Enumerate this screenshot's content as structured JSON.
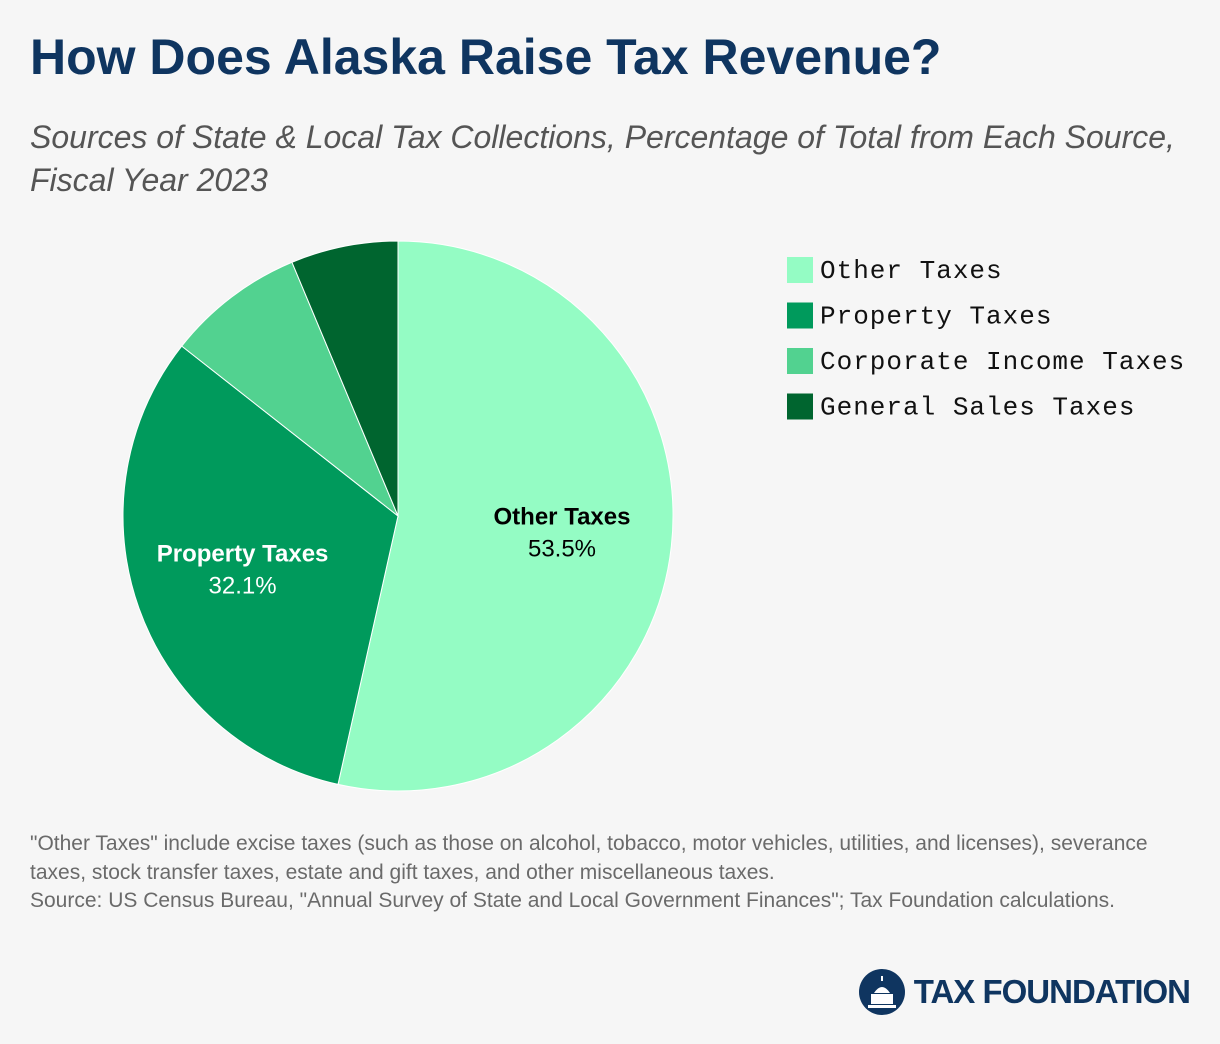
{
  "chart_data": {
    "type": "pie",
    "title": "How Does Alaska Raise Tax Revenue?",
    "subtitle": "Sources of State & Local Tax Collections, Percentage of Total from Each Source, Fiscal Year 2023",
    "categories": [
      "Other Taxes",
      "Property Taxes",
      "Corporate Income Taxes",
      "General Sales Taxes"
    ],
    "values": [
      53.5,
      32.1,
      8.1,
      6.3
    ],
    "value_labels": [
      "53.5%",
      "32.1%",
      null,
      null
    ],
    "colors": [
      "#94fcc4",
      "#009a5c",
      "#52d290",
      "#00652f"
    ],
    "legend": "top-right",
    "note": "\"Other Taxes\" include excise taxes (such as those on alcohol, tobacco, motor vehicles, utilities, and licenses), severance taxes, stock transfer taxes, estate and gift taxes, and other miscellaneous taxes.",
    "source": "Source: US Census Bureau, \"Annual Survey of State and Local Government Finances\"; Tax Foundation calculations.",
    "brand": "TAX FOUNDATION"
  }
}
